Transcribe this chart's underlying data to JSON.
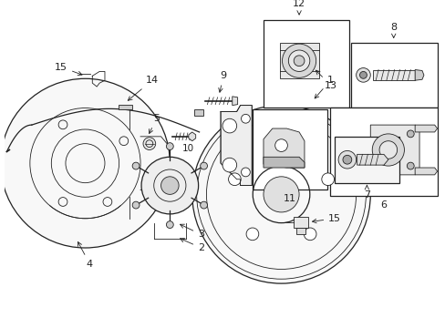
{
  "bg_color": "#ffffff",
  "line_color": "#222222",
  "fig_w": 4.89,
  "fig_h": 3.6,
  "dpi": 100,
  "xl": 0,
  "xr": 489,
  "yb": 0,
  "yt": 360
}
